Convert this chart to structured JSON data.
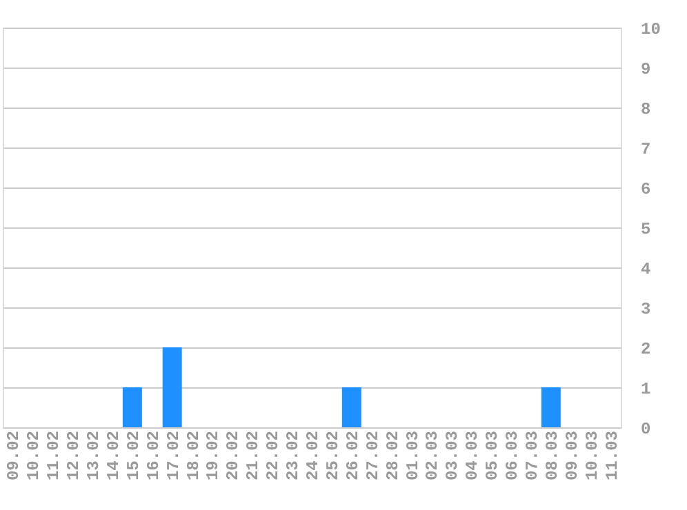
{
  "chart_data": {
    "type": "bar",
    "categories": [
      "09.02",
      "10.02",
      "11.02",
      "12.02",
      "13.02",
      "14.02",
      "15.02",
      "16.02",
      "17.02",
      "18.02",
      "19.02",
      "20.02",
      "21.02",
      "22.02",
      "23.02",
      "24.02",
      "25.02",
      "26.02",
      "27.02",
      "28.02",
      "01.03",
      "02.03",
      "03.03",
      "04.03",
      "05.03",
      "06.03",
      "07.03",
      "08.03",
      "09.03",
      "10.03",
      "11.03"
    ],
    "values": [
      0,
      0,
      0,
      0,
      0,
      0,
      1,
      0,
      2,
      0,
      0,
      0,
      0,
      0,
      0,
      0,
      0,
      1,
      0,
      0,
      0,
      0,
      0,
      0,
      0,
      0,
      0,
      1,
      0,
      0,
      0
    ],
    "color": "#1e90ff",
    "ylim": [
      0,
      10
    ],
    "yticks": [
      0,
      1,
      2,
      3,
      4,
      5,
      6,
      7,
      8,
      9,
      10
    ],
    "grid": "y"
  }
}
